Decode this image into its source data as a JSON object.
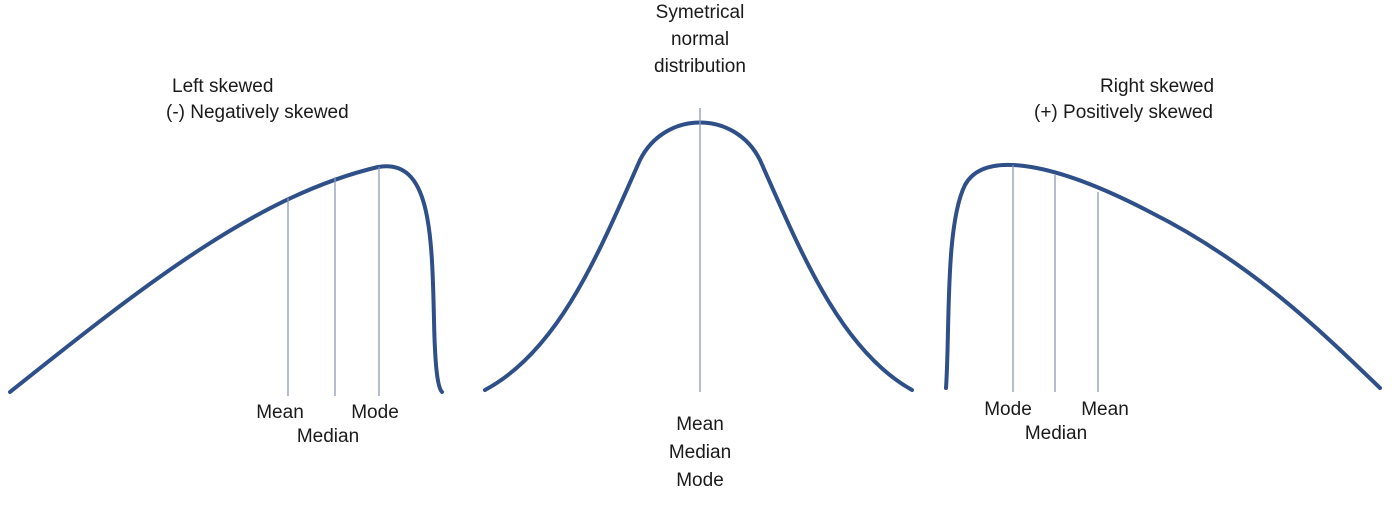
{
  "panels": [
    {
      "id": "left",
      "title_lines": [
        "Left skewed",
        "(-) Negatively skewed"
      ],
      "labels": {
        "mean": "Mean",
        "median": "Median",
        "mode": "Mode"
      }
    },
    {
      "id": "center",
      "title_lines": [
        "Symetrical",
        "normal",
        "distribution"
      ],
      "labels": {
        "mean": "Mean",
        "median": "Median",
        "mode": "Mode"
      }
    },
    {
      "id": "right",
      "title_lines": [
        "Right skewed",
        "(+) Positively skewed"
      ],
      "labels": {
        "mode": "Mode",
        "median": "Median",
        "mean": "Mean"
      }
    }
  ],
  "colors": {
    "curve": "#2f4f88",
    "marker": "#8b99b8",
    "text": "#1a1a1a"
  }
}
